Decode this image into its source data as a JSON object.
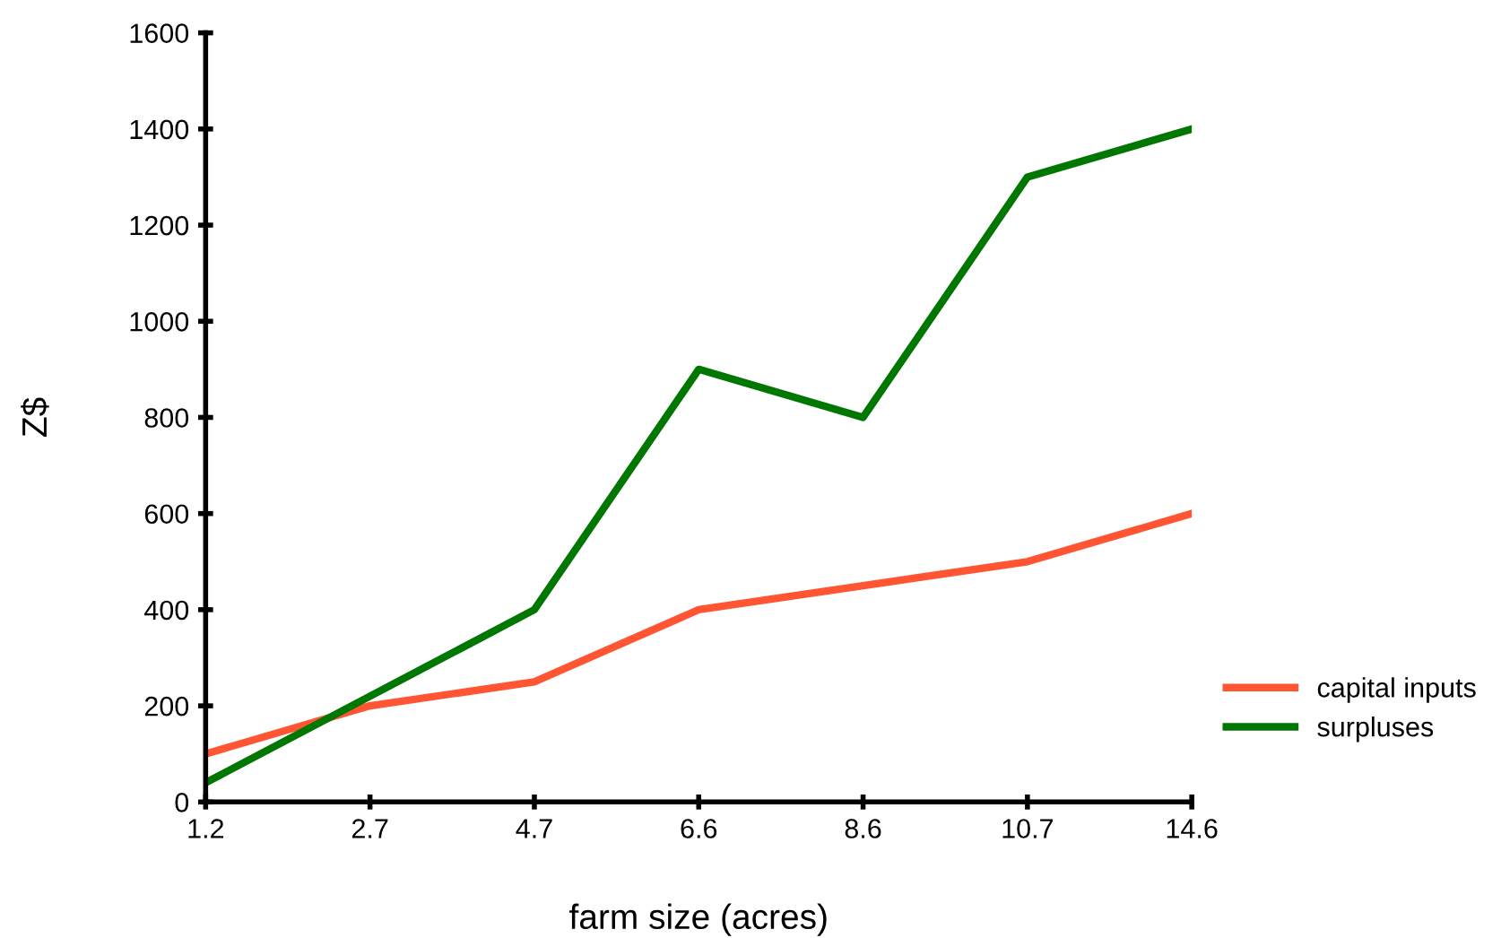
{
  "chart_data": {
    "type": "line",
    "xlabel": "farm size (acres)",
    "ylabel": "Z$",
    "categories": [
      "1.2",
      "2.7",
      "4.7",
      "6.6",
      "8.6",
      "10.7",
      "14.6"
    ],
    "series": [
      {
        "name": "capital inputs",
        "color": "#ff5533",
        "values": [
          100,
          200,
          250,
          400,
          450,
          500,
          600
        ]
      },
      {
        "name": "surpluses",
        "color": "#007700",
        "values": [
          40,
          220,
          400,
          900,
          800,
          1300,
          1400
        ]
      }
    ],
    "ylim": [
      0,
      1600
    ],
    "yticks": [
      0,
      200,
      400,
      600,
      800,
      1000,
      1200,
      1400,
      1600
    ],
    "grid": false,
    "legend": "right",
    "marker": "none",
    "line_style": "solid"
  }
}
